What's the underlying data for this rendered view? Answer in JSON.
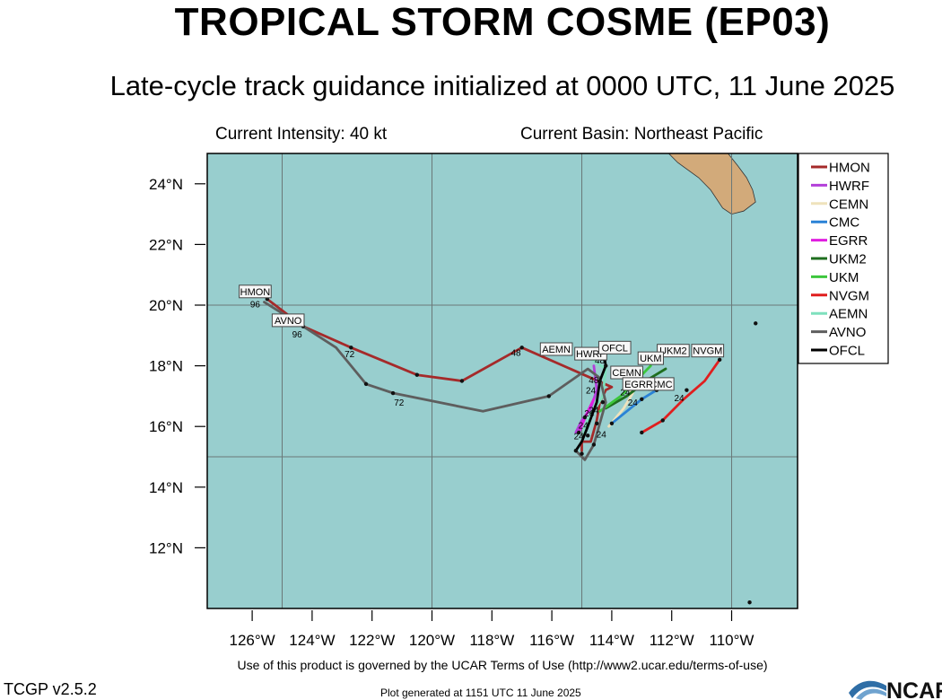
{
  "header": {
    "title": "TROPICAL STORM COSME (EP03)",
    "subtitle": "Late-cycle track guidance initialized at 0000 UTC, 11 June 2025",
    "current_intensity": "Current Intensity: 40 kt",
    "current_basin": "Current Basin: Northeast Pacific"
  },
  "footer": {
    "terms": "Use of this product is governed by the UCAR Terms of Use (http://www2.ucar.edu/terms-of-use)",
    "version": "TCGP v2.5.2",
    "generated": "Plot generated at 1151 UTC   11 June 2025",
    "logo_text": "NCAR"
  },
  "colors": {
    "ocean": "#98cece",
    "land": "#d2aa7a",
    "grid": "#6a7878"
  },
  "map": {
    "lon_range": [
      -127.5,
      -107.8
    ],
    "lat_range": [
      10.0,
      25.0
    ],
    "lon_ticks": [
      {
        "value": -126,
        "label": "126°W"
      },
      {
        "value": -124,
        "label": "124°W"
      },
      {
        "value": -122,
        "label": "122°W"
      },
      {
        "value": -120,
        "label": "120°W"
      },
      {
        "value": -118,
        "label": "118°W"
      },
      {
        "value": -116,
        "label": "116°W"
      },
      {
        "value": -114,
        "label": "114°W"
      },
      {
        "value": -112,
        "label": "112°W"
      },
      {
        "value": -110,
        "label": "110°W"
      }
    ],
    "lat_ticks": [
      {
        "value": 24,
        "label": "24°N"
      },
      {
        "value": 22,
        "label": "22°N"
      },
      {
        "value": 20,
        "label": "20°N"
      },
      {
        "value": 18,
        "label": "18°N"
      },
      {
        "value": 16,
        "label": "16°N"
      },
      {
        "value": 14,
        "label": "14°N"
      },
      {
        "value": 12,
        "label": "12°N"
      }
    ],
    "grid_lons": [
      -125,
      -120,
      -115,
      -110
    ],
    "grid_lats": [
      20,
      15
    ],
    "land": [
      {
        "name": "baja-california-sur",
        "points": [
          [
            -110.2,
            25.1
          ],
          [
            -109.8,
            24.6
          ],
          [
            -109.5,
            24.2
          ],
          [
            -109.3,
            23.8
          ],
          [
            -109.2,
            23.4
          ],
          [
            -109.6,
            23.1
          ],
          [
            -110.0,
            23.0
          ],
          [
            -110.3,
            23.2
          ],
          [
            -110.7,
            23.8
          ],
          [
            -111.1,
            24.2
          ],
          [
            -111.8,
            24.7
          ],
          [
            -112.2,
            25.1
          ]
        ]
      }
    ],
    "models": [
      {
        "name": "HMON",
        "color": "#a52a2a",
        "track": [
          [
            -115.0,
            15.2
          ],
          [
            -115.0,
            15.5
          ],
          [
            -114.7,
            15.5
          ],
          [
            -114.5,
            16.2
          ],
          [
            -114.4,
            16.8
          ],
          [
            -114.2,
            17.2
          ],
          [
            -114.0,
            17.3
          ],
          [
            -117.0,
            18.6
          ],
          [
            -119.0,
            17.5
          ],
          [
            -120.5,
            17.7
          ],
          [
            -122.7,
            18.6
          ],
          [
            -124.3,
            19.3
          ],
          [
            -125.5,
            20.2
          ]
        ],
        "label": {
          "text": "HMON",
          "lon": -125.9,
          "lat": 20.45
        },
        "taus": [
          {
            "text": "48",
            "lon": -117.2,
            "lat": 18.45
          },
          {
            "text": "72",
            "lon": -122.75,
            "lat": 18.4
          },
          {
            "text": "96",
            "lon": -125.9,
            "lat": 20.05
          }
        ]
      },
      {
        "name": "HWRF",
        "color": "#b33fd9",
        "track": [
          [
            -115.2,
            15.8
          ],
          [
            -115.0,
            16.2
          ],
          [
            -114.7,
            16.6
          ],
          [
            -114.5,
            17.2
          ],
          [
            -114.6,
            18.0
          ]
        ],
        "label": {
          "text": "HWRF",
          "lon": -114.7,
          "lat": 18.4
        },
        "taus": [
          {
            "text": "24",
            "lon": -114.95,
            "lat": 16.05
          }
        ]
      },
      {
        "name": "CEMN",
        "color": "#efe2bc",
        "track": [
          [
            -114.1,
            16.0
          ],
          [
            -113.6,
            16.6
          ],
          [
            -113.3,
            17.1
          ],
          [
            -113.5,
            17.3
          ]
        ],
        "label": {
          "text": "CEMN",
          "lon": -113.5,
          "lat": 17.78
        },
        "taus": []
      },
      {
        "name": "CMC",
        "color": "#2a82d6",
        "track": [
          [
            -114.0,
            16.1
          ],
          [
            -113.0,
            16.9
          ],
          [
            -112.5,
            17.2
          ],
          [
            -112.3,
            17.5
          ]
        ],
        "label": {
          "text": "CMC",
          "lon": -112.35,
          "lat": 17.4
        },
        "taus": [
          {
            "text": "24",
            "lon": -113.3,
            "lat": 16.8
          }
        ]
      },
      {
        "name": "EGRR",
        "color": "#e01ee0",
        "track": [
          [
            -115.1,
            15.8
          ],
          [
            -114.8,
            16.5
          ],
          [
            -114.6,
            16.9
          ]
        ],
        "label": {
          "text": "EGRR",
          "lon": -113.1,
          "lat": 17.4
        },
        "taus": [
          {
            "text": "24",
            "lon": -114.75,
            "lat": 16.45
          }
        ]
      },
      {
        "name": "UKM2",
        "color": "#1f6e1f",
        "track": [
          [
            -114.2,
            16.6
          ],
          [
            -113.5,
            17.0
          ],
          [
            -112.7,
            17.6
          ],
          [
            -112.2,
            17.9
          ]
        ],
        "label": {
          "text": "UKM2",
          "lon": -111.95,
          "lat": 18.5
        },
        "taus": [
          {
            "text": "24",
            "lon": -113.55,
            "lat": 17.15
          }
        ]
      },
      {
        "name": "UKM",
        "color": "#3cc63c",
        "track": [
          [
            -114.4,
            16.5
          ],
          [
            -113.7,
            17.0
          ],
          [
            -113.1,
            17.6
          ],
          [
            -112.7,
            18.0
          ]
        ],
        "label": {
          "text": "UKM",
          "lon": -112.7,
          "lat": 18.25
        },
        "taus": []
      },
      {
        "name": "NVGM",
        "color": "#e01e1e",
        "track": [
          [
            -113.0,
            15.8
          ],
          [
            -112.3,
            16.2
          ],
          [
            -111.6,
            16.9
          ],
          [
            -110.9,
            17.5
          ],
          [
            -110.4,
            18.2
          ]
        ],
        "label": {
          "text": "NVGM",
          "lon": -110.8,
          "lat": 18.5
        },
        "taus": [
          {
            "text": "24",
            "lon": -111.75,
            "lat": 16.95
          }
        ]
      },
      {
        "name": "AEMN",
        "color": "#7ee0bd",
        "track": [
          [
            -115.0,
            15.5
          ],
          [
            -114.8,
            16.2
          ],
          [
            -114.3,
            17.0
          ],
          [
            -114.2,
            17.9
          ],
          [
            -114.8,
            18.3
          ],
          [
            -115.1,
            18.3
          ]
        ],
        "label": {
          "text": "AEMN",
          "lon": -115.85,
          "lat": 18.55
        },
        "taus": [
          {
            "text": "24",
            "lon": -114.35,
            "lat": 15.75
          }
        ]
      },
      {
        "name": "AVNO",
        "color": "#5e5e5e",
        "track": [
          [
            -115.2,
            15.2
          ],
          [
            -114.9,
            14.9
          ],
          [
            -114.6,
            15.4
          ],
          [
            -114.4,
            16.1
          ],
          [
            -114.2,
            16.8
          ],
          [
            -114.4,
            17.6
          ],
          [
            -114.8,
            17.9
          ],
          [
            -116.1,
            17.0
          ],
          [
            -118.3,
            16.5
          ],
          [
            -121.3,
            17.1
          ],
          [
            -122.2,
            17.4
          ],
          [
            -123.2,
            18.6
          ],
          [
            -124.3,
            19.3
          ],
          [
            -125.6,
            20.1
          ]
        ],
        "label": {
          "text": "AVNO",
          "lon": -124.8,
          "lat": 19.5
        },
        "taus": [
          {
            "text": "72",
            "lon": -121.1,
            "lat": 16.8
          },
          {
            "text": "96",
            "lon": -124.5,
            "lat": 19.05
          }
        ]
      },
      {
        "name": "OFCL",
        "color": "#000000",
        "track": [
          [
            -115.2,
            15.2
          ],
          [
            -115.0,
            15.5
          ],
          [
            -114.8,
            16.0
          ],
          [
            -114.5,
            16.8
          ],
          [
            -114.4,
            17.5
          ],
          [
            -114.2,
            18.0
          ],
          [
            -114.25,
            18.3
          ]
        ],
        "label": {
          "text": "OFCL",
          "lon": -113.9,
          "lat": 18.6
        },
        "taus": [
          {
            "text": "48",
            "lon": -114.4,
            "lat": 18.2
          },
          {
            "text": "48",
            "lon": -114.6,
            "lat": 17.55
          },
          {
            "text": "24",
            "lon": -114.7,
            "lat": 17.2
          },
          {
            "text": "24",
            "lon": -114.6,
            "lat": 16.55
          },
          {
            "text": "24",
            "lon": -115.1,
            "lat": 15.7
          }
        ]
      }
    ],
    "points": [
      {
        "lon": -115.2,
        "lat": 15.2
      },
      {
        "lon": -115.0,
        "lat": 15.1
      },
      {
        "lon": -114.6,
        "lat": 15.4
      },
      {
        "lon": -114.8,
        "lat": 15.7
      },
      {
        "lon": -115.1,
        "lat": 15.8
      },
      {
        "lon": -114.5,
        "lat": 16.1
      },
      {
        "lon": -114.3,
        "lat": 16.8
      },
      {
        "lon": -114.0,
        "lat": 16.1
      },
      {
        "lon": -113.0,
        "lat": 15.8
      },
      {
        "lon": -112.3,
        "lat": 16.2
      },
      {
        "lon": -112.5,
        "lat": 17.2
      },
      {
        "lon": -113.0,
        "lat": 16.9
      },
      {
        "lon": -111.5,
        "lat": 17.2
      },
      {
        "lon": -117.0,
        "lat": 18.6
      },
      {
        "lon": -119.0,
        "lat": 17.5
      },
      {
        "lon": -120.5,
        "lat": 17.7
      },
      {
        "lon": -121.3,
        "lat": 17.1
      },
      {
        "lon": -122.2,
        "lat": 17.4
      },
      {
        "lon": -116.1,
        "lat": 17.0
      },
      {
        "lon": -122.7,
        "lat": 18.6
      },
      {
        "lon": -124.3,
        "lat": 19.3
      },
      {
        "lon": -125.5,
        "lat": 20.2
      },
      {
        "lon": -114.2,
        "lat": 18.0
      },
      {
        "lon": -114.4,
        "lat": 17.5
      },
      {
        "lon": -110.4,
        "lat": 18.2
      },
      {
        "lon": -109.2,
        "lat": 19.4
      },
      {
        "lon": -109.4,
        "lat": 10.2
      },
      {
        "lon": -114.9,
        "lat": 16.3
      }
    ]
  },
  "legend": {
    "items": [
      {
        "name": "HMON",
        "color": "#a52a2a"
      },
      {
        "name": "HWRF",
        "color": "#b33fd9"
      },
      {
        "name": "CEMN",
        "color": "#efe2bc"
      },
      {
        "name": "CMC",
        "color": "#2a82d6"
      },
      {
        "name": "EGRR",
        "color": "#e01ee0"
      },
      {
        "name": "UKM2",
        "color": "#1f6e1f"
      },
      {
        "name": "UKM",
        "color": "#3cc63c"
      },
      {
        "name": "NVGM",
        "color": "#e01e1e"
      },
      {
        "name": "AEMN",
        "color": "#7ee0bd"
      },
      {
        "name": "AVNO",
        "color": "#5e5e5e"
      },
      {
        "name": "OFCL",
        "color": "#000000"
      }
    ]
  }
}
